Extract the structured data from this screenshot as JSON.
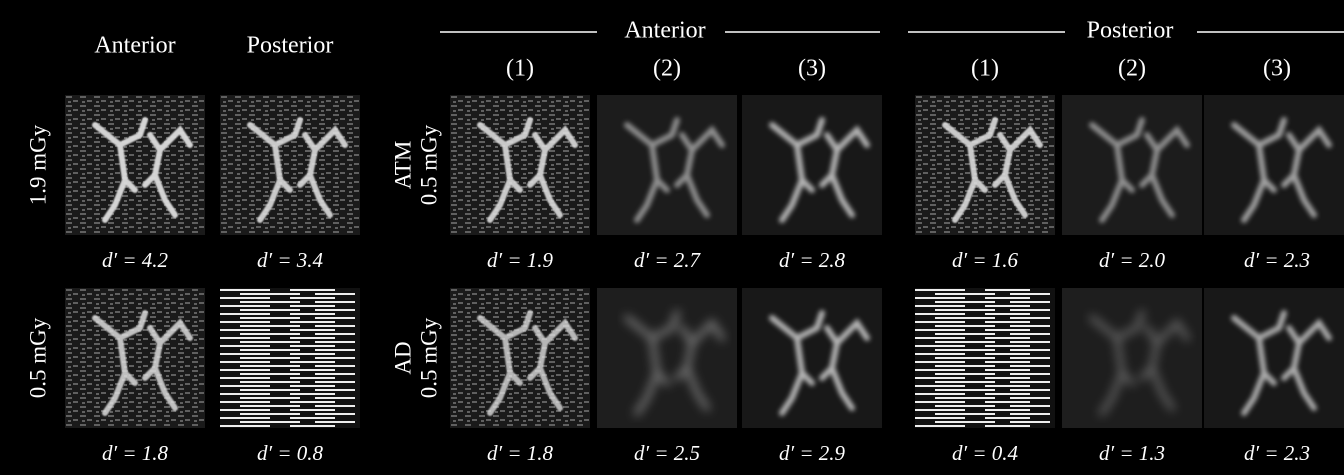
{
  "left": {
    "headers": [
      "Anterior",
      "Posterior"
    ],
    "rows": [
      {
        "label": "1.9 mGy",
        "metrics": [
          "d′ = 4.2",
          "d′ = 3.4"
        ]
      },
      {
        "label": "0.5 mGy",
        "metrics": [
          "d′ = 1.8",
          "d′ = 0.8"
        ]
      }
    ]
  },
  "right": {
    "groups": [
      {
        "title": "Anterior",
        "columns": [
          "(1)",
          "(2)",
          "(3)"
        ]
      },
      {
        "title": "Posterior",
        "columns": [
          "(1)",
          "(2)",
          "(3)"
        ]
      }
    ],
    "rows": [
      {
        "method": "ATM",
        "dose": "0.5 mGy",
        "metrics": [
          [
            "d′ = 1.9",
            "d′ = 2.7",
            "d′ = 2.8"
          ],
          [
            "d′ = 1.6",
            "d′ = 2.0",
            "d′ = 2.3"
          ]
        ]
      },
      {
        "method": "AD",
        "dose": "0.5 mGy",
        "metrics": [
          [
            "d′ = 1.8",
            "d′ = 2.5",
            "d′ = 2.9"
          ],
          [
            "d′ = 0.4",
            "d′ = 1.3",
            "d′ = 2.3"
          ]
        ]
      }
    ]
  }
}
